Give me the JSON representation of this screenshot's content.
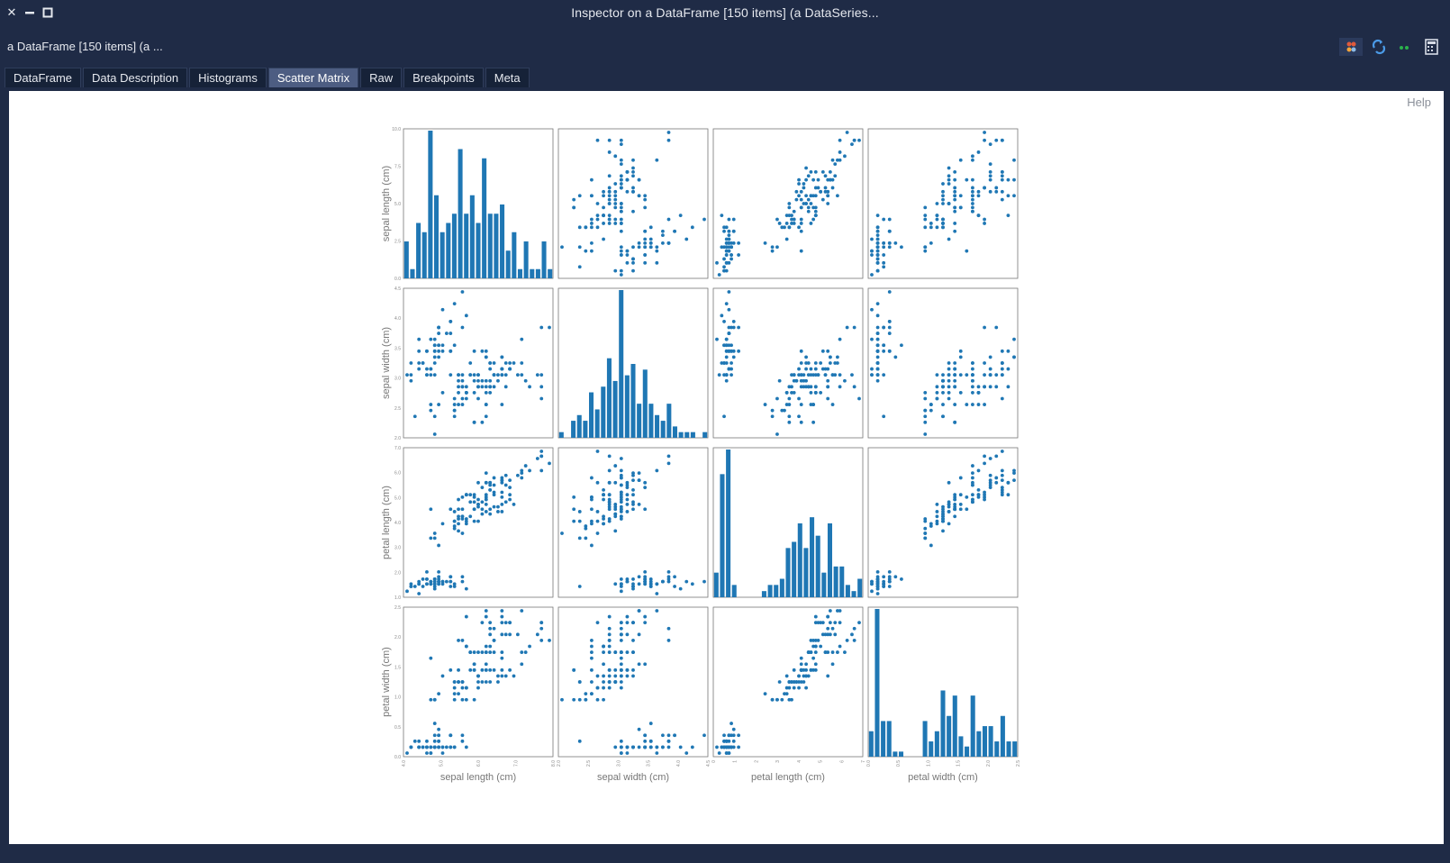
{
  "window": {
    "title": "Inspector on a DataFrame [150 items] (a DataSeries...",
    "subtitle": "a DataFrame [150 items] (a ..."
  },
  "tabs": [
    {
      "label": "DataFrame",
      "active": false
    },
    {
      "label": "Data Description",
      "active": false
    },
    {
      "label": "Histograms",
      "active": false
    },
    {
      "label": "Scatter Matrix",
      "active": true
    },
    {
      "label": "Raw",
      "active": false
    },
    {
      "label": "Breakpoints",
      "active": false
    },
    {
      "label": "Meta",
      "active": false
    }
  ],
  "help_label": "Help",
  "toolbar": {
    "icons": [
      "inspect-icon",
      "refresh-icon",
      "dots-icon",
      "calculator-icon"
    ]
  },
  "colors": {
    "accent": "#1f77b4",
    "window_bg": "#1f2b46",
    "active_tab": "#4d5d82"
  },
  "chart_data": {
    "type": "scatter",
    "variables": [
      "sepal length (cm)",
      "sepal width (cm)",
      "petal length (cm)",
      "petal width (cm)"
    ],
    "diagonal": "histogram",
    "y_axis_ticks": {
      "sepal length (cm)": [
        "0.0",
        "2.5",
        "5.0",
        "7.5",
        "10.0"
      ],
      "sepal width (cm)": [
        "2.0",
        "2.5",
        "3.0",
        "3.5",
        "4.0",
        "4.5"
      ],
      "petal length (cm)": [
        "1.0",
        "2.0",
        "3.0",
        "4.0",
        "5.0",
        "6.0",
        "7.0"
      ],
      "petal width (cm)": [
        "0.0",
        "0.5",
        "1.0",
        "1.5",
        "2.0",
        "2.5"
      ]
    },
    "x_axis_ticks": {
      "sepal length (cm)": [
        "4.0",
        "5.0",
        "6.0",
        "7.0",
        "8.0"
      ],
      "sepal width (cm)": [
        "2.0",
        "2.5",
        "3.0",
        "3.5",
        "4.0",
        "4.5"
      ],
      "petal length (cm)": [
        "0",
        "1",
        "2",
        "3",
        "4",
        "5",
        "6",
        "7"
      ],
      "petal width (cm)": [
        "0.0",
        "0.5",
        "1.0",
        "1.5",
        "2.0",
        "2.5"
      ]
    },
    "ranges": {
      "sepal length (cm)": [
        4.3,
        7.9
      ],
      "sepal width (cm)": [
        2.0,
        4.4
      ],
      "petal length (cm)": [
        1.0,
        6.9
      ],
      "petal width (cm)": [
        0.1,
        2.5
      ]
    },
    "histogram_peak_count": {
      "sepal length (cm)": 10,
      "sepal width (cm)": 26,
      "petal length (cm)": 14,
      "petal width (cm)": 29
    },
    "samples": [
      [
        5.1,
        3.5,
        1.4,
        0.2
      ],
      [
        4.9,
        3.0,
        1.4,
        0.2
      ],
      [
        4.7,
        3.2,
        1.3,
        0.2
      ],
      [
        4.6,
        3.1,
        1.5,
        0.2
      ],
      [
        5.0,
        3.6,
        1.4,
        0.2
      ],
      [
        5.4,
        3.9,
        1.7,
        0.4
      ],
      [
        4.6,
        3.4,
        1.4,
        0.3
      ],
      [
        5.0,
        3.4,
        1.5,
        0.2
      ],
      [
        4.4,
        2.9,
        1.4,
        0.2
      ],
      [
        4.9,
        3.1,
        1.5,
        0.1
      ],
      [
        5.4,
        3.7,
        1.5,
        0.2
      ],
      [
        4.8,
        3.4,
        1.6,
        0.2
      ],
      [
        4.8,
        3.0,
        1.4,
        0.1
      ],
      [
        4.3,
        3.0,
        1.1,
        0.1
      ],
      [
        5.8,
        4.0,
        1.2,
        0.2
      ],
      [
        5.7,
        4.4,
        1.5,
        0.4
      ],
      [
        5.4,
        3.9,
        1.3,
        0.4
      ],
      [
        5.1,
        3.5,
        1.4,
        0.3
      ],
      [
        5.7,
        3.8,
        1.7,
        0.3
      ],
      [
        5.1,
        3.8,
        1.5,
        0.3
      ],
      [
        5.4,
        3.4,
        1.7,
        0.2
      ],
      [
        5.1,
        3.7,
        1.5,
        0.4
      ],
      [
        4.6,
        3.6,
        1.0,
        0.2
      ],
      [
        5.1,
        3.3,
        1.7,
        0.5
      ],
      [
        4.8,
        3.4,
        1.9,
        0.2
      ],
      [
        5.0,
        3.0,
        1.6,
        0.2
      ],
      [
        5.0,
        3.4,
        1.6,
        0.4
      ],
      [
        5.2,
        3.5,
        1.5,
        0.2
      ],
      [
        5.2,
        3.4,
        1.4,
        0.2
      ],
      [
        4.7,
        3.2,
        1.6,
        0.2
      ],
      [
        4.8,
        3.1,
        1.6,
        0.2
      ],
      [
        5.4,
        3.4,
        1.5,
        0.4
      ],
      [
        5.2,
        4.1,
        1.5,
        0.1
      ],
      [
        5.5,
        4.2,
        1.4,
        0.2
      ],
      [
        4.9,
        3.1,
        1.5,
        0.2
      ],
      [
        5.0,
        3.2,
        1.2,
        0.2
      ],
      [
        5.5,
        3.5,
        1.3,
        0.2
      ],
      [
        4.9,
        3.6,
        1.4,
        0.1
      ],
      [
        4.4,
        3.0,
        1.3,
        0.2
      ],
      [
        5.1,
        3.4,
        1.5,
        0.2
      ],
      [
        5.0,
        3.5,
        1.3,
        0.3
      ],
      [
        4.5,
        2.3,
        1.3,
        0.3
      ],
      [
        4.4,
        3.2,
        1.3,
        0.2
      ],
      [
        5.0,
        3.5,
        1.6,
        0.6
      ],
      [
        5.1,
        3.8,
        1.9,
        0.4
      ],
      [
        4.8,
        3.0,
        1.4,
        0.3
      ],
      [
        5.1,
        3.8,
        1.6,
        0.2
      ],
      [
        4.6,
        3.2,
        1.4,
        0.2
      ],
      [
        5.3,
        3.7,
        1.5,
        0.2
      ],
      [
        5.0,
        3.3,
        1.4,
        0.2
      ],
      [
        7.0,
        3.2,
        4.7,
        1.4
      ],
      [
        6.4,
        3.2,
        4.5,
        1.5
      ],
      [
        6.9,
        3.1,
        4.9,
        1.5
      ],
      [
        5.5,
        2.3,
        4.0,
        1.3
      ],
      [
        6.5,
        2.8,
        4.6,
        1.5
      ],
      [
        5.7,
        2.8,
        4.5,
        1.3
      ],
      [
        6.3,
        3.3,
        4.7,
        1.6
      ],
      [
        4.9,
        2.4,
        3.3,
        1.0
      ],
      [
        6.6,
        2.9,
        4.6,
        1.3
      ],
      [
        5.2,
        2.7,
        3.9,
        1.4
      ],
      [
        5.0,
        2.0,
        3.5,
        1.0
      ],
      [
        5.9,
        3.0,
        4.2,
        1.5
      ],
      [
        6.0,
        2.2,
        4.0,
        1.0
      ],
      [
        6.1,
        2.9,
        4.7,
        1.4
      ],
      [
        5.6,
        2.9,
        3.6,
        1.3
      ],
      [
        6.7,
        3.1,
        4.4,
        1.4
      ],
      [
        5.6,
        3.0,
        4.5,
        1.5
      ],
      [
        5.8,
        2.7,
        4.1,
        1.0
      ],
      [
        6.2,
        2.2,
        4.5,
        1.5
      ],
      [
        5.6,
        2.5,
        3.9,
        1.1
      ],
      [
        5.9,
        3.2,
        4.8,
        1.8
      ],
      [
        6.1,
        2.8,
        4.0,
        1.3
      ],
      [
        6.3,
        2.5,
        4.9,
        1.5
      ],
      [
        6.1,
        2.8,
        4.7,
        1.2
      ],
      [
        6.4,
        2.9,
        4.3,
        1.3
      ],
      [
        6.6,
        3.0,
        4.4,
        1.4
      ],
      [
        6.8,
        2.8,
        4.8,
        1.4
      ],
      [
        6.7,
        3.0,
        5.0,
        1.7
      ],
      [
        6.0,
        2.9,
        4.5,
        1.5
      ],
      [
        5.7,
        2.6,
        3.5,
        1.0
      ],
      [
        5.5,
        2.4,
        3.8,
        1.1
      ],
      [
        5.5,
        2.4,
        3.7,
        1.0
      ],
      [
        5.8,
        2.7,
        3.9,
        1.2
      ],
      [
        6.0,
        2.7,
        5.1,
        1.6
      ],
      [
        5.4,
        3.0,
        4.5,
        1.5
      ],
      [
        6.0,
        3.4,
        4.5,
        1.6
      ],
      [
        6.7,
        3.1,
        4.7,
        1.5
      ],
      [
        6.3,
        2.3,
        4.4,
        1.3
      ],
      [
        5.6,
        3.0,
        4.1,
        1.3
      ],
      [
        5.5,
        2.5,
        4.0,
        1.3
      ],
      [
        5.5,
        2.6,
        4.4,
        1.2
      ],
      [
        6.1,
        3.0,
        4.6,
        1.4
      ],
      [
        5.8,
        2.6,
        4.0,
        1.2
      ],
      [
        5.0,
        2.3,
        3.3,
        1.0
      ],
      [
        5.6,
        2.7,
        4.2,
        1.3
      ],
      [
        5.7,
        3.0,
        4.2,
        1.2
      ],
      [
        5.7,
        2.9,
        4.2,
        1.3
      ],
      [
        6.2,
        2.9,
        4.3,
        1.3
      ],
      [
        5.1,
        2.5,
        3.0,
        1.1
      ],
      [
        5.7,
        2.8,
        4.1,
        1.3
      ],
      [
        6.3,
        3.3,
        6.0,
        2.5
      ],
      [
        5.8,
        2.7,
        5.1,
        1.9
      ],
      [
        7.1,
        3.0,
        5.9,
        2.1
      ],
      [
        6.3,
        2.9,
        5.6,
        1.8
      ],
      [
        6.5,
        3.0,
        5.8,
        2.2
      ],
      [
        7.6,
        3.0,
        6.6,
        2.1
      ],
      [
        4.9,
        2.5,
        4.5,
        1.7
      ],
      [
        7.3,
        2.9,
        6.3,
        1.8
      ],
      [
        6.7,
        2.5,
        5.8,
        1.8
      ],
      [
        7.2,
        3.6,
        6.1,
        2.5
      ],
      [
        6.5,
        3.2,
        5.1,
        2.0
      ],
      [
        6.4,
        2.7,
        5.3,
        1.9
      ],
      [
        6.8,
        3.0,
        5.5,
        2.1
      ],
      [
        5.7,
        2.5,
        5.0,
        2.0
      ],
      [
        5.8,
        2.8,
        5.1,
        2.4
      ],
      [
        6.4,
        3.2,
        5.3,
        2.3
      ],
      [
        6.5,
        3.0,
        5.5,
        1.8
      ],
      [
        7.7,
        3.8,
        6.7,
        2.2
      ],
      [
        7.7,
        2.6,
        6.9,
        2.3
      ],
      [
        6.0,
        2.2,
        5.0,
        1.5
      ],
      [
        6.9,
        3.2,
        5.7,
        2.3
      ],
      [
        5.6,
        2.8,
        4.9,
        2.0
      ],
      [
        7.7,
        2.8,
        6.7,
        2.0
      ],
      [
        6.3,
        2.7,
        4.9,
        1.8
      ],
      [
        6.7,
        3.3,
        5.7,
        2.1
      ],
      [
        7.2,
        3.2,
        6.0,
        1.8
      ],
      [
        6.2,
        2.8,
        4.8,
        1.8
      ],
      [
        6.1,
        3.0,
        4.9,
        1.8
      ],
      [
        6.4,
        2.8,
        5.6,
        2.1
      ],
      [
        7.2,
        3.0,
        5.8,
        1.6
      ],
      [
        7.4,
        2.8,
        6.1,
        1.9
      ],
      [
        7.9,
        3.8,
        6.4,
        2.0
      ],
      [
        6.4,
        2.8,
        5.6,
        2.2
      ],
      [
        6.3,
        2.8,
        5.1,
        1.5
      ],
      [
        6.1,
        2.6,
        5.6,
        1.4
      ],
      [
        7.7,
        3.0,
        6.1,
        2.3
      ],
      [
        6.3,
        3.4,
        5.6,
        2.4
      ],
      [
        6.4,
        3.1,
        5.5,
        1.8
      ],
      [
        6.0,
        3.0,
        4.8,
        1.8
      ],
      [
        6.9,
        3.1,
        5.4,
        2.1
      ],
      [
        6.7,
        3.1,
        5.6,
        2.4
      ],
      [
        6.9,
        3.1,
        5.1,
        2.3
      ],
      [
        5.8,
        2.7,
        5.1,
        1.9
      ],
      [
        6.8,
        3.2,
        5.9,
        2.3
      ],
      [
        6.7,
        3.3,
        5.7,
        2.5
      ],
      [
        6.7,
        3.0,
        5.2,
        2.3
      ],
      [
        6.3,
        2.5,
        5.0,
        1.9
      ],
      [
        6.5,
        3.0,
        5.2,
        2.0
      ],
      [
        6.2,
        3.4,
        5.4,
        2.3
      ],
      [
        5.9,
        3.0,
        5.1,
        1.8
      ]
    ]
  }
}
